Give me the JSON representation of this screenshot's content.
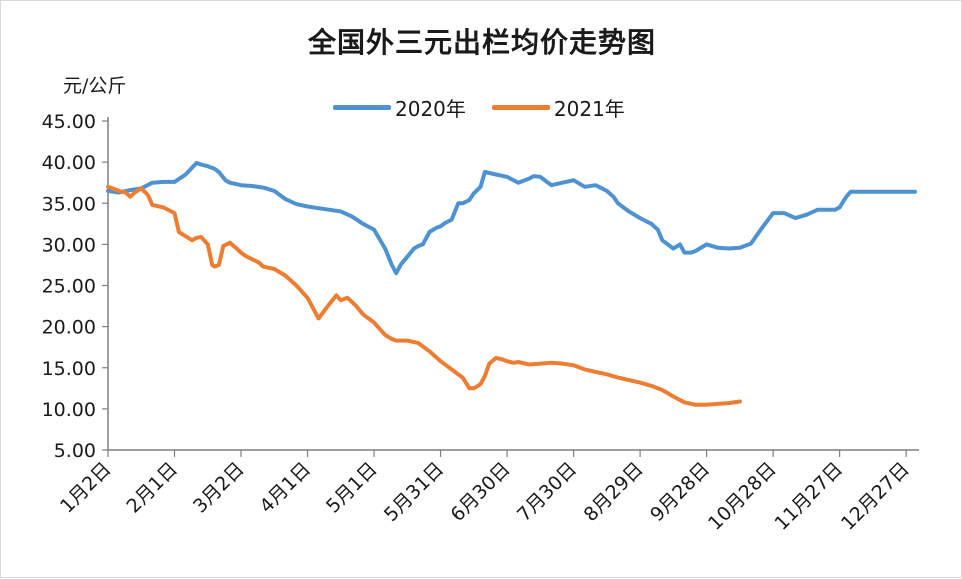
{
  "chart_data": {
    "type": "line",
    "title": "全国外三元出栏均价走势图",
    "ylabel": "元/公斤",
    "xlabel": "",
    "ylim": [
      5,
      45
    ],
    "y_ticks": [
      "5.00",
      "10.00",
      "15.00",
      "20.00",
      "25.00",
      "30.00",
      "35.00",
      "40.00",
      "45.00"
    ],
    "x_ticks": [
      "1月2日",
      "2月1日",
      "3月2日",
      "4月1日",
      "5月1日",
      "5月31日",
      "6月30日",
      "7月30日",
      "8月29日",
      "9月28日",
      "10月28日",
      "11月27日",
      "12月27日"
    ],
    "x_tick_days": [
      0,
      30,
      60,
      90,
      120,
      150,
      180,
      210,
      240,
      270,
      300,
      330,
      360
    ],
    "legend_position": "top",
    "grid": false,
    "series": [
      {
        "name": "2020年",
        "color": "#4e92d2",
        "x": [
          0,
          5,
          10,
          15,
          20,
          25,
          30,
          35,
          40,
          42,
          45,
          48,
          50,
          53,
          55,
          60,
          65,
          70,
          75,
          80,
          85,
          90,
          95,
          100,
          105,
          110,
          115,
          120,
          125,
          128,
          130,
          132,
          135,
          138,
          140,
          142,
          145,
          148,
          150,
          152,
          155,
          158,
          160,
          163,
          165,
          168,
          170,
          175,
          180,
          185,
          188,
          190,
          192,
          195,
          197,
          200,
          205,
          210,
          215,
          220,
          225,
          228,
          230,
          235,
          240,
          245,
          248,
          250,
          255,
          258,
          260,
          263,
          265,
          270,
          275,
          280,
          285,
          290,
          295,
          300,
          305,
          310,
          315,
          320,
          325,
          328,
          330,
          333,
          335,
          340,
          345,
          350,
          355,
          360,
          364
        ],
        "y": [
          36.5,
          36.3,
          36.6,
          36.8,
          37.5,
          37.6,
          37.6,
          38.5,
          39.9,
          39.7,
          39.5,
          39.2,
          38.8,
          37.8,
          37.5,
          37.2,
          37.1,
          36.9,
          36.5,
          35.5,
          34.9,
          34.6,
          34.4,
          34.2,
          34.0,
          33.4,
          32.5,
          31.8,
          29.5,
          27.5,
          26.5,
          27.5,
          28.5,
          29.5,
          29.8,
          30.0,
          31.5,
          32.0,
          32.2,
          32.6,
          33.0,
          35.0,
          35.0,
          35.4,
          36.2,
          37.0,
          38.8,
          38.5,
          38.2,
          37.5,
          37.8,
          38.0,
          38.3,
          38.2,
          37.8,
          37.2,
          37.5,
          37.8,
          37.0,
          37.2,
          36.5,
          35.8,
          35.0,
          34.0,
          33.2,
          32.5,
          31.8,
          30.5,
          29.5,
          30.0,
          29.0,
          29.0,
          29.2,
          30.0,
          29.6,
          29.5,
          29.6,
          30.1,
          32.0,
          33.8,
          33.8,
          33.2,
          33.6,
          34.2,
          34.2,
          34.2,
          34.5,
          35.8,
          36.4,
          36.4,
          36.4,
          36.4,
          36.4,
          36.4,
          36.4
        ]
      },
      {
        "name": "2021年",
        "color": "#ed7d31",
        "x": [
          0,
          5,
          8,
          10,
          12,
          15,
          18,
          20,
          25,
          30,
          32,
          35,
          38,
          40,
          42,
          45,
          47,
          48,
          50,
          52,
          55,
          58,
          60,
          62,
          65,
          68,
          70,
          75,
          80,
          85,
          90,
          95,
          100,
          103,
          105,
          108,
          110,
          112,
          115,
          120,
          125,
          128,
          130,
          132,
          135,
          140,
          145,
          150,
          155,
          160,
          163,
          165,
          168,
          170,
          172,
          175,
          178,
          180,
          183,
          185,
          190,
          195,
          200,
          205,
          210,
          215,
          220,
          225,
          230,
          235,
          240,
          245,
          250,
          255,
          260,
          265,
          270,
          275,
          280,
          285
        ],
        "y": [
          37.0,
          36.5,
          36.3,
          35.8,
          36.3,
          36.8,
          36.0,
          34.8,
          34.5,
          33.8,
          31.5,
          31.0,
          30.5,
          30.8,
          30.9,
          30.0,
          27.5,
          27.3,
          27.5,
          29.8,
          30.2,
          29.5,
          29.0,
          28.6,
          28.2,
          27.8,
          27.3,
          27.0,
          26.2,
          25.0,
          23.5,
          21.0,
          22.8,
          23.8,
          23.2,
          23.5,
          23.0,
          22.5,
          21.5,
          20.5,
          19.0,
          18.5,
          18.3,
          18.3,
          18.3,
          18.0,
          17.0,
          15.8,
          14.8,
          13.8,
          12.5,
          12.5,
          13.0,
          14.0,
          15.5,
          16.2,
          16.0,
          15.8,
          15.6,
          15.7,
          15.4,
          15.5,
          15.6,
          15.5,
          15.3,
          14.8,
          14.5,
          14.2,
          13.8,
          13.5,
          13.2,
          12.8,
          12.3,
          11.5,
          10.8,
          10.5,
          10.5,
          10.6,
          10.7,
          10.9
        ]
      }
    ]
  }
}
